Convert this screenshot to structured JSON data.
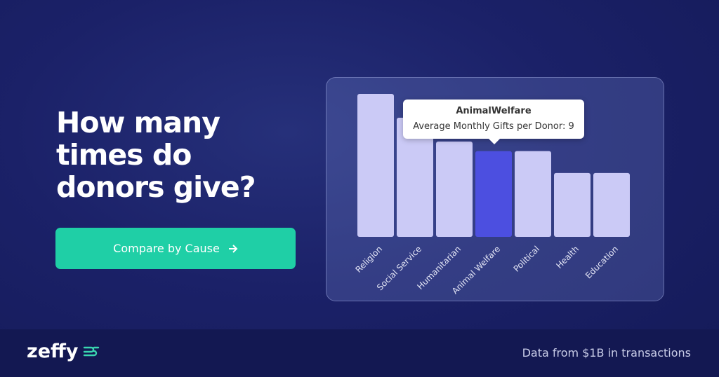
{
  "headline": "How many times do donors give?",
  "button": {
    "label": "Compare by Cause"
  },
  "logo": "zeffy",
  "footer": "Data from $1B in transactions",
  "chart_data": {
    "type": "bar",
    "categories": [
      "Religion",
      "Social Service",
      "Humanitarian",
      "Animal Welfare",
      "Political",
      "Health",
      "Education"
    ],
    "values": [
      15,
      12.5,
      10,
      9,
      9,
      6.7,
      6.7
    ],
    "colors": [
      "#cbcaf6",
      "#cbcaf6",
      "#cbcaf6",
      "#4c4fe0",
      "#cbcaf6",
      "#cbcaf6",
      "#cbcaf6"
    ],
    "tooltip": {
      "title": "AnimalWelfare",
      "label": "Average Monthly Gifts per Donor:"
    }
  }
}
